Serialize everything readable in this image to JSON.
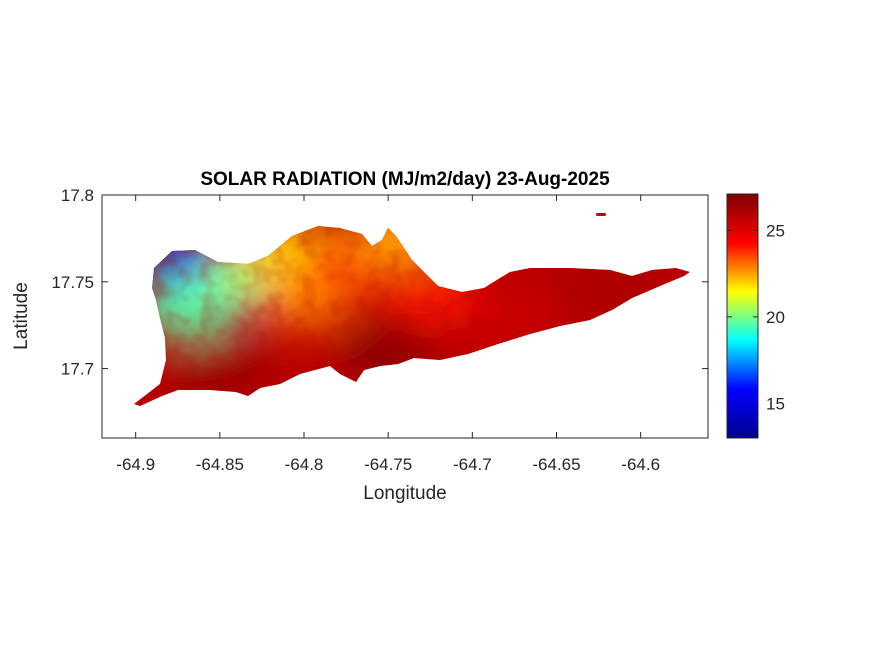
{
  "title": "SOLAR RADIATION (MJ/m2/day) 23-Aug-2025",
  "xlabel": "Longitude",
  "ylabel": "Latitude",
  "chart_data": {
    "type": "heatmap",
    "title": "SOLAR RADIATION (MJ/m2/day) 23-Aug-2025",
    "xlabel": "Longitude",
    "ylabel": "Latitude",
    "xlim": [
      -64.92,
      -64.56
    ],
    "ylim": [
      17.66,
      17.8
    ],
    "x_ticks": [
      {
        "value": -64.9,
        "label": "-64.9"
      },
      {
        "value": -64.85,
        "label": "-64.85"
      },
      {
        "value": -64.8,
        "label": "-64.8"
      },
      {
        "value": -64.75,
        "label": "-64.75"
      },
      {
        "value": -64.7,
        "label": "-64.7"
      },
      {
        "value": -64.65,
        "label": "-64.65"
      },
      {
        "value": -64.6,
        "label": "-64.6"
      }
    ],
    "y_ticks": [
      {
        "value": 17.7,
        "label": "17.7"
      },
      {
        "value": 17.75,
        "label": "17.75"
      },
      {
        "value": 17.8,
        "label": "17.8"
      }
    ],
    "colorbar": {
      "colormap": "jet",
      "min": 13.0,
      "max": 27.1,
      "ticks": [
        {
          "value": 15,
          "label": "15"
        },
        {
          "value": 20,
          "label": "20"
        },
        {
          "value": 25,
          "label": "25"
        }
      ],
      "colors": [
        "#00008f",
        "#0000ff",
        "#00ffff",
        "#ffff00",
        "#ff0000",
        "#800000"
      ]
    },
    "regions": [
      {
        "lon": -64.865,
        "lat": 17.76,
        "value": 14.5
      },
      {
        "lon": -64.85,
        "lat": 17.745,
        "value": 17.5
      },
      {
        "lon": -64.87,
        "lat": 17.735,
        "value": 19.5
      },
      {
        "lon": -64.83,
        "lat": 17.755,
        "value": 20.5
      },
      {
        "lon": -64.81,
        "lat": 17.77,
        "value": 22.5
      },
      {
        "lon": -64.8,
        "lat": 17.74,
        "value": 23.5
      },
      {
        "lon": -64.77,
        "lat": 17.76,
        "value": 24.5
      },
      {
        "lon": -64.745,
        "lat": 17.775,
        "value": 23.0
      },
      {
        "lon": -64.72,
        "lat": 17.74,
        "value": 25.0
      },
      {
        "lon": -64.68,
        "lat": 17.73,
        "value": 26.0
      },
      {
        "lon": -64.62,
        "lat": 17.745,
        "value": 26.5
      },
      {
        "lon": -64.85,
        "lat": 17.7,
        "value": 26.8
      },
      {
        "lon": -64.75,
        "lat": 17.71,
        "value": 27.0
      }
    ]
  }
}
